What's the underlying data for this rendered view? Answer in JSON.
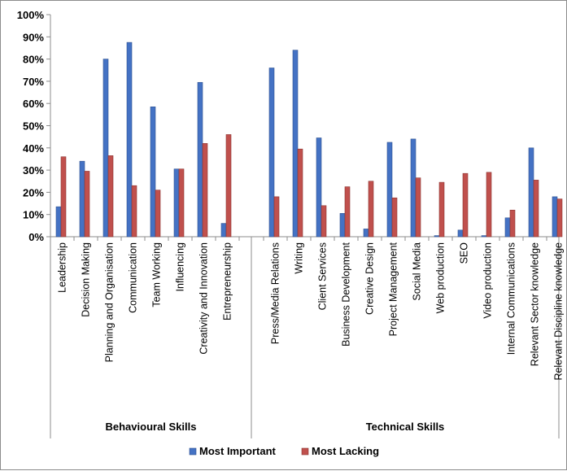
{
  "chart_data": {
    "type": "bar",
    "ylim": [
      0,
      100
    ],
    "y_ticks": [
      "0%",
      "10%",
      "20%",
      "30%",
      "40%",
      "50%",
      "60%",
      "70%",
      "80%",
      "90%",
      "100%"
    ],
    "grid": false,
    "legend_position": "bottom",
    "groups": [
      {
        "label": "Behavioural Skills",
        "categories": [
          "Leadership",
          "Decision Making",
          "Planning and Organisation",
          "Communication",
          "Team Working",
          "Influencing",
          "Creativity and Innovation",
          "Entrepreneurship"
        ]
      },
      {
        "label": "Technical Skills",
        "categories": [
          "Press/Media Relations",
          "Writing",
          "Client Services",
          "Business Development",
          "Creative Design",
          "Project Management",
          "Social Media",
          "Web production",
          "SEO",
          "Video production",
          "Internal Communications",
          "Relevant Sector knowledge",
          "Relevant Discipline knowledge"
        ]
      }
    ],
    "series": [
      {
        "name": "Most Important",
        "color": "#4472c4",
        "values": [
          13.5,
          34,
          80,
          87.5,
          58.5,
          30.5,
          69.5,
          6,
          76,
          84,
          44.5,
          10.5,
          3.5,
          42.5,
          44,
          0.5,
          3,
          0.5,
          8.5,
          40,
          18
        ]
      },
      {
        "name": "Most Lacking",
        "color": "#c0504d",
        "values": [
          36,
          29.5,
          36.5,
          23,
          21,
          30.5,
          42,
          46,
          18,
          39.5,
          14,
          22.5,
          25,
          17.5,
          26.5,
          24.5,
          28.5,
          29,
          12,
          25.5,
          17
        ]
      }
    ]
  }
}
